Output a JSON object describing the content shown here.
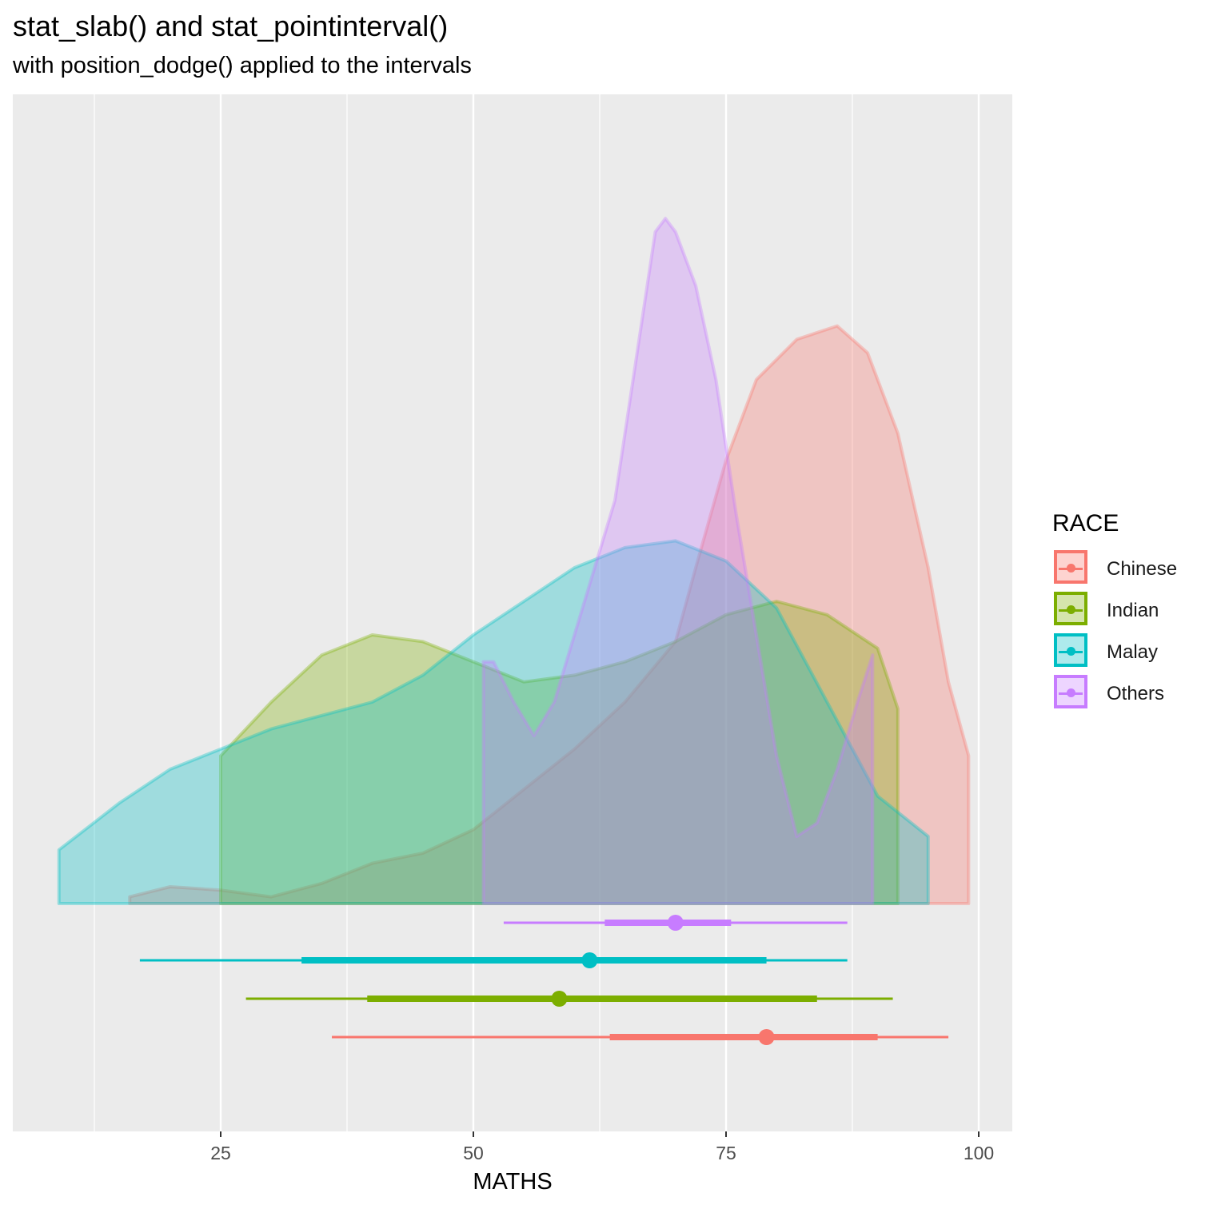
{
  "title": "stat_slab() and stat_pointinterval()",
  "subtitle": "with position_dodge() applied to the intervals",
  "chart_data": {
    "type": "area",
    "xlabel": "MATHS",
    "ylabel": "",
    "xlim": [
      6,
      100
    ],
    "x_ticks": [
      25,
      50,
      75,
      100
    ],
    "grid": true,
    "legend": {
      "title": "RACE",
      "position": "right",
      "entries": [
        "Chinese",
        "Indian",
        "Malay",
        "Others"
      ]
    },
    "colors": {
      "Chinese": "#F8766D",
      "Indian": "#7CAE00",
      "Malay": "#00BFC4",
      "Others": "#C77CFF",
      "panel": "#EBEBEB",
      "grid": "#FFFFFF"
    },
    "slab_density": [
      {
        "name": "Chinese",
        "points": [
          [
            16,
            0.01
          ],
          [
            20,
            0.025
          ],
          [
            25,
            0.02
          ],
          [
            30,
            0.01
          ],
          [
            35,
            0.03
          ],
          [
            40,
            0.06
          ],
          [
            45,
            0.075
          ],
          [
            50,
            0.11
          ],
          [
            55,
            0.17
          ],
          [
            60,
            0.23
          ],
          [
            65,
            0.3
          ],
          [
            70,
            0.39
          ],
          [
            72,
            0.5
          ],
          [
            75,
            0.66
          ],
          [
            78,
            0.78
          ],
          [
            82,
            0.84
          ],
          [
            86,
            0.86
          ],
          [
            89,
            0.82
          ],
          [
            92,
            0.7
          ],
          [
            95,
            0.5
          ],
          [
            97,
            0.33
          ],
          [
            99,
            0.22
          ]
        ]
      },
      {
        "name": "Indian",
        "points": [
          [
            25,
            0.22
          ],
          [
            30,
            0.3
          ],
          [
            35,
            0.37
          ],
          [
            40,
            0.4
          ],
          [
            45,
            0.39
          ],
          [
            50,
            0.36
          ],
          [
            55,
            0.33
          ],
          [
            60,
            0.34
          ],
          [
            65,
            0.36
          ],
          [
            70,
            0.39
          ],
          [
            75,
            0.43
          ],
          [
            80,
            0.45
          ],
          [
            85,
            0.43
          ],
          [
            90,
            0.38
          ],
          [
            92,
            0.29
          ]
        ]
      },
      {
        "name": "Malay",
        "points": [
          [
            9,
            0.08
          ],
          [
            15,
            0.15
          ],
          [
            20,
            0.2
          ],
          [
            25,
            0.23
          ],
          [
            30,
            0.26
          ],
          [
            35,
            0.28
          ],
          [
            40,
            0.3
          ],
          [
            45,
            0.34
          ],
          [
            50,
            0.4
          ],
          [
            55,
            0.45
          ],
          [
            60,
            0.5
          ],
          [
            65,
            0.53
          ],
          [
            70,
            0.54
          ],
          [
            75,
            0.51
          ],
          [
            80,
            0.44
          ],
          [
            85,
            0.3
          ],
          [
            90,
            0.16
          ],
          [
            95,
            0.1
          ]
        ]
      },
      {
        "name": "Others",
        "points": [
          [
            51,
            0.36
          ],
          [
            52,
            0.36
          ],
          [
            54,
            0.3
          ],
          [
            56,
            0.25
          ],
          [
            58,
            0.3
          ],
          [
            60,
            0.4
          ],
          [
            62,
            0.5
          ],
          [
            64,
            0.6
          ],
          [
            66,
            0.8
          ],
          [
            68,
            1.0
          ],
          [
            69,
            1.02
          ],
          [
            70,
            1.0
          ],
          [
            72,
            0.92
          ],
          [
            74,
            0.78
          ],
          [
            76,
            0.58
          ],
          [
            78,
            0.4
          ],
          [
            80,
            0.22
          ],
          [
            82,
            0.1
          ],
          [
            84,
            0.12
          ],
          [
            86,
            0.2
          ],
          [
            88,
            0.3
          ],
          [
            89.5,
            0.37
          ],
          [
            89.5,
            0.0
          ]
        ]
      }
    ],
    "intervals": [
      {
        "name": "Chinese",
        "point": 79,
        "inner": [
          63.5,
          90
        ],
        "outer": [
          36,
          97
        ]
      },
      {
        "name": "Indian",
        "point": 58.5,
        "inner": [
          39.5,
          84
        ],
        "outer": [
          27.5,
          91.5
        ]
      },
      {
        "name": "Malay",
        "point": 61.5,
        "inner": [
          33,
          79
        ],
        "outer": [
          17,
          87
        ]
      },
      {
        "name": "Others",
        "point": 70,
        "inner": [
          63,
          75.5
        ],
        "outer": [
          53,
          87
        ]
      }
    ]
  }
}
